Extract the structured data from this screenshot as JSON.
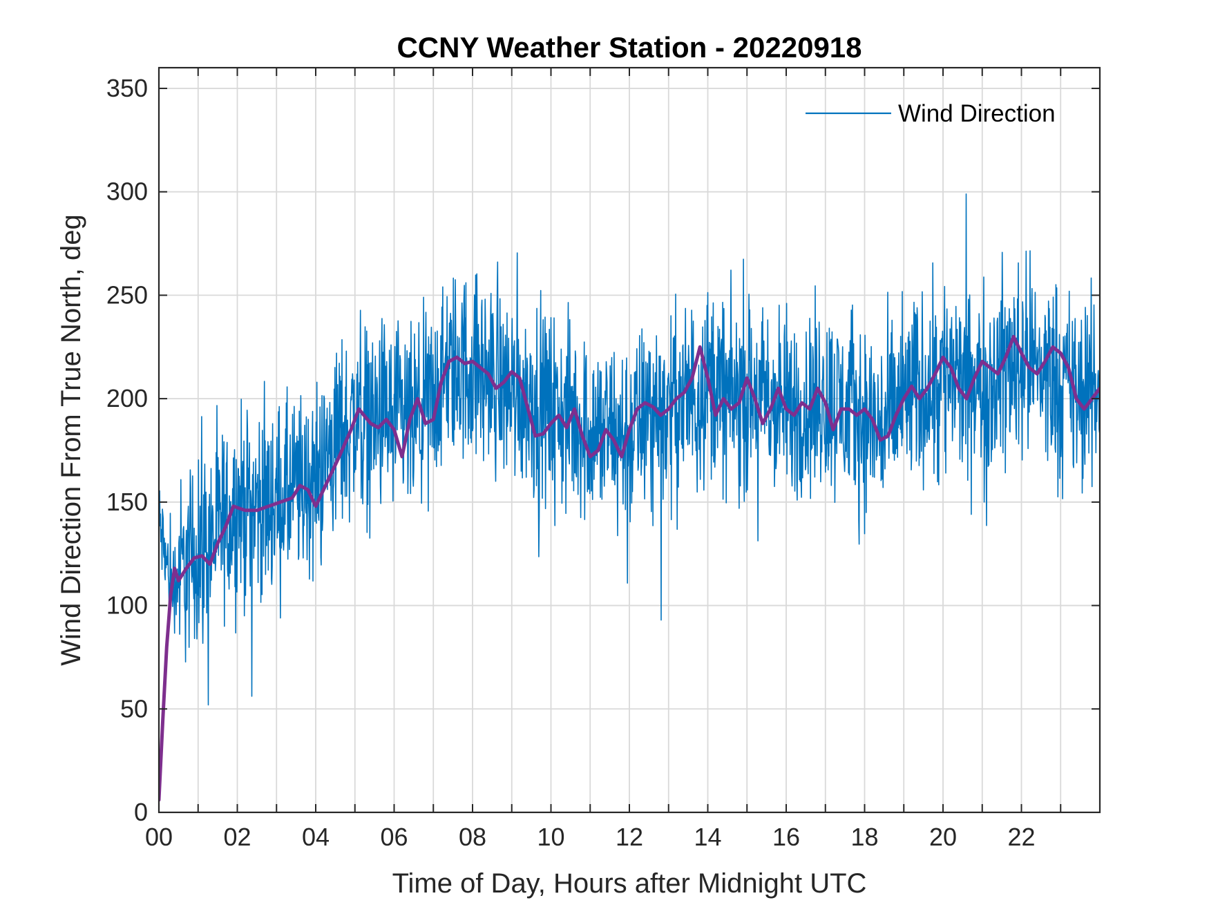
{
  "chart_data": {
    "type": "line",
    "title": "CCNY Weather Station - 20220918",
    "xlabel": "Time of Day, Hours after Midnight UTC",
    "ylabel": "Wind Direction From True North, deg",
    "xlim": [
      0,
      24
    ],
    "ylim": [
      0,
      360
    ],
    "x_ticks": [
      0,
      2,
      4,
      6,
      8,
      10,
      12,
      14,
      16,
      18,
      20,
      22
    ],
    "x_tick_labels": [
      "00",
      "02",
      "04",
      "06",
      "08",
      "10",
      "12",
      "14",
      "16",
      "18",
      "20",
      "22"
    ],
    "x_minor_grid_step": 1,
    "y_ticks": [
      0,
      50,
      100,
      150,
      200,
      250,
      300,
      350
    ],
    "y_tick_labels": [
      "0",
      "50",
      "100",
      "150",
      "200",
      "250",
      "300",
      "350"
    ],
    "grid": true,
    "legend_position": "top-right",
    "colors": {
      "raw": "#0072BD",
      "smooth": "#7E2F8E",
      "grid": "#d9d9d9",
      "axes": "#262626"
    },
    "series": [
      {
        "name": "Wind Direction",
        "role": "raw",
        "sample_interval_hours": 0.01,
        "noise_amplitude_deg": 30,
        "trend": {
          "x": [
            0,
            0.1,
            0.3,
            0.5,
            1,
            1.5,
            2,
            3,
            4,
            4.5,
            5,
            6,
            6.5,
            7,
            7.5,
            8,
            8.5,
            9,
            9.5,
            10,
            11,
            12,
            12.5,
            13,
            13.5,
            14,
            14.5,
            15,
            16,
            16.5,
            17,
            18,
            18.5,
            19,
            19.5,
            20,
            20.5,
            21,
            21.5,
            22,
            22.5,
            23,
            23.5,
            24
          ],
          "y": [
            140,
            130,
            110,
            115,
            125,
            135,
            148,
            150,
            160,
            180,
            190,
            190,
            185,
            200,
            215,
            215,
            210,
            205,
            200,
            195,
            185,
            180,
            195,
            195,
            200,
            210,
            200,
            200,
            195,
            195,
            200,
            190,
            185,
            200,
            205,
            215,
            205,
            205,
            215,
            220,
            215,
            210,
            200,
            205
          ]
        }
      },
      {
        "name": "",
        "role": "smoothed",
        "x": [
          0,
          0.1,
          0.2,
          0.3,
          0.4,
          0.5,
          0.7,
          0.9,
          1.1,
          1.3,
          1.5,
          1.7,
          1.9,
          2.2,
          2.5,
          2.8,
          3.1,
          3.4,
          3.6,
          3.8,
          4.0,
          4.3,
          4.6,
          4.9,
          5.1,
          5.4,
          5.6,
          5.8,
          6.0,
          6.2,
          6.4,
          6.6,
          6.8,
          7.0,
          7.2,
          7.4,
          7.6,
          7.8,
          8.0,
          8.2,
          8.4,
          8.6,
          8.8,
          9.0,
          9.2,
          9.4,
          9.6,
          9.8,
          10.0,
          10.2,
          10.4,
          10.6,
          10.8,
          11.0,
          11.2,
          11.4,
          11.6,
          11.8,
          12.0,
          12.2,
          12.4,
          12.6,
          12.8,
          13.0,
          13.2,
          13.4,
          13.6,
          13.8,
          14.0,
          14.2,
          14.4,
          14.6,
          14.8,
          15.0,
          15.2,
          15.4,
          15.6,
          15.8,
          16.0,
          16.2,
          16.4,
          16.6,
          16.8,
          17.0,
          17.2,
          17.4,
          17.6,
          17.8,
          18.0,
          18.2,
          18.4,
          18.6,
          18.8,
          19.0,
          19.2,
          19.4,
          19.6,
          19.8,
          20.0,
          20.2,
          20.4,
          20.6,
          20.8,
          21.0,
          21.2,
          21.4,
          21.6,
          21.8,
          22.0,
          22.2,
          22.4,
          22.6,
          22.8,
          23.0,
          23.2,
          23.4,
          23.6,
          23.8,
          24.0
        ],
        "values": [
          6,
          45,
          80,
          105,
          118,
          112,
          118,
          123,
          124,
          120,
          130,
          138,
          148,
          146,
          146,
          148,
          150,
          152,
          158,
          156,
          148,
          160,
          172,
          185,
          195,
          188,
          186,
          190,
          185,
          172,
          190,
          200,
          188,
          190,
          208,
          218,
          220,
          217,
          218,
          215,
          212,
          205,
          208,
          213,
          210,
          196,
          182,
          183,
          188,
          192,
          186,
          195,
          182,
          172,
          175,
          185,
          180,
          172,
          185,
          195,
          198,
          196,
          192,
          195,
          200,
          203,
          210,
          225,
          210,
          192,
          200,
          195,
          198,
          210,
          200,
          188,
          195,
          205,
          195,
          192,
          198,
          195,
          205,
          198,
          185,
          195,
          195,
          192,
          195,
          190,
          180,
          182,
          192,
          200,
          206,
          200,
          205,
          212,
          220,
          215,
          205,
          200,
          210,
          218,
          215,
          212,
          220,
          230,
          222,
          215,
          212,
          218,
          225,
          222,
          215,
          200,
          195,
          200,
          205
        ]
      }
    ]
  }
}
